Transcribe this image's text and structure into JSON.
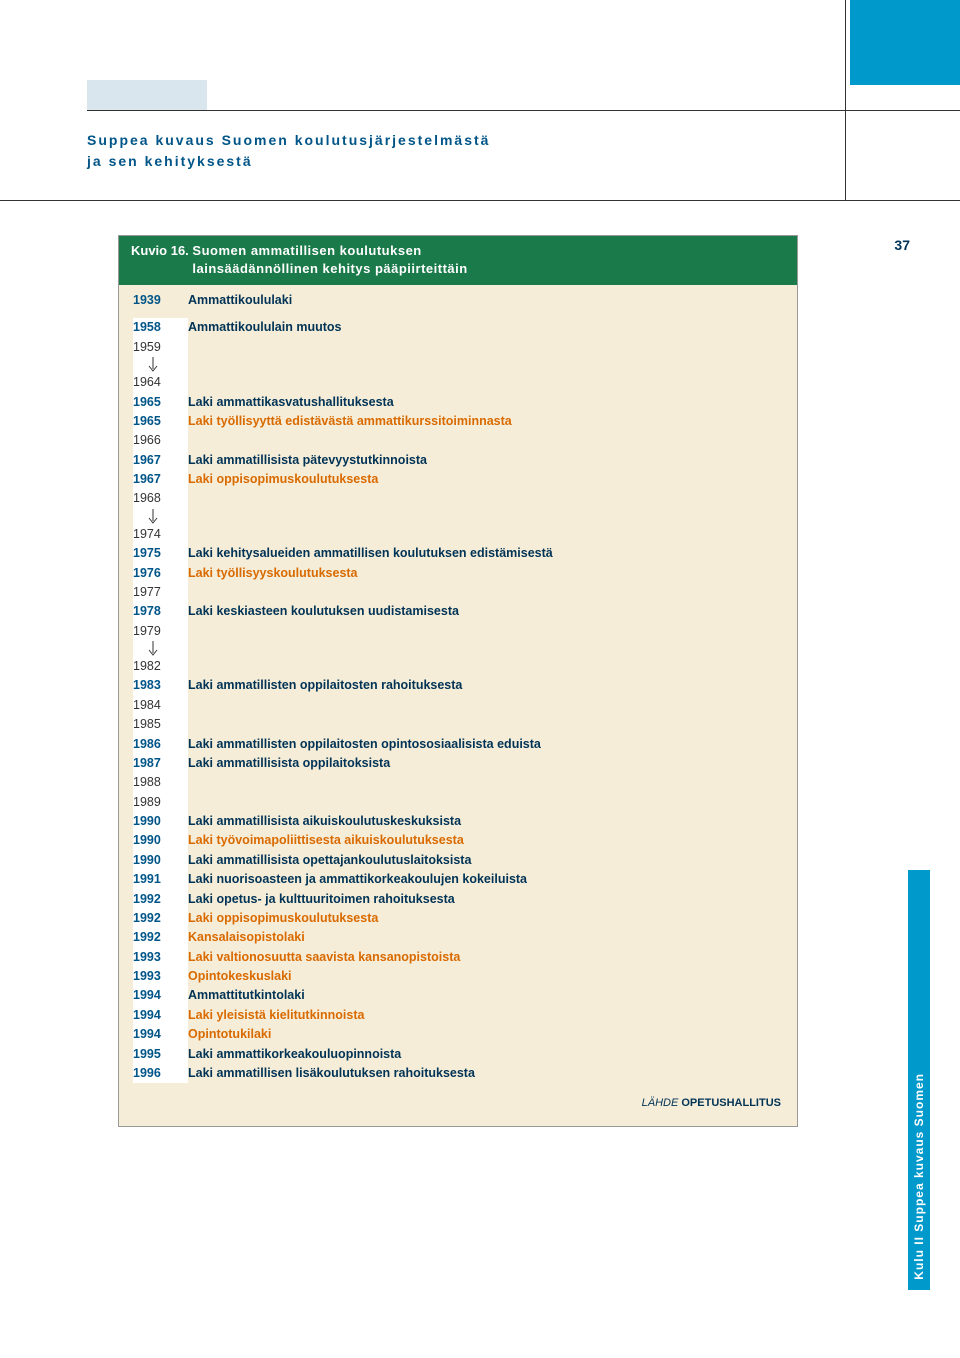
{
  "colors": {
    "accent_blue": "#0099cc",
    "header_green": "#1a7a4a",
    "body_beige": "#f6edd9",
    "text_navy": "#003355",
    "text_orange": "#d96a00",
    "year_blue": "#005588"
  },
  "heading": {
    "line1": "Suppea kuvaus Suomen koulutusjärjestelmästä",
    "line2": "ja sen kehityksestä"
  },
  "page_number": "37",
  "side_tab": "Kulu II   Suppea kuvaus Suomen",
  "figure": {
    "kuvio": "Kuvio 16.",
    "title_line1": "Suomen ammatillisen koulutuksen",
    "title_line2": "lainsäädännöllinen kehitys pääpiirteittäin",
    "first_year": "1939",
    "first_text": "Ammattikoululaki",
    "rows": [
      {
        "year": "1958",
        "text": "Ammattikoululain muutos",
        "bold": true,
        "color": "blue"
      },
      {
        "year": "1959",
        "text": "",
        "bold": false
      },
      {
        "arrow": true
      },
      {
        "year": "1964",
        "text": "",
        "bold": false
      },
      {
        "year": "1965",
        "text": "Laki ammattikasvatushallituksesta",
        "bold": true,
        "color": "blue"
      },
      {
        "year": "1965",
        "text": "Laki työllisyyttä edistävästä ammattikurssitoiminnasta",
        "bold": true,
        "color": "orange"
      },
      {
        "year": "1966",
        "text": "",
        "bold": false
      },
      {
        "year": "1967",
        "text": "Laki ammatillisista pätevyystutkinnoista",
        "bold": true,
        "color": "blue"
      },
      {
        "year": "1967",
        "text": "Laki oppisopimuskoulutuksesta",
        "bold": true,
        "color": "orange"
      },
      {
        "year": "1968",
        "text": "",
        "bold": false
      },
      {
        "arrow": true
      },
      {
        "year": "1974",
        "text": "",
        "bold": false
      },
      {
        "year": "1975",
        "text": "Laki kehitysalueiden ammatillisen koulutuksen edistämisestä",
        "bold": true,
        "color": "blue"
      },
      {
        "year": "1976",
        "text": "Laki työllisyyskoulutuksesta",
        "bold": true,
        "color": "orange"
      },
      {
        "year": "1977",
        "text": "",
        "bold": false
      },
      {
        "year": "1978",
        "text": "Laki keskiasteen koulutuksen uudistamisesta",
        "bold": true,
        "color": "blue"
      },
      {
        "year": "1979",
        "text": "",
        "bold": false
      },
      {
        "arrow": true
      },
      {
        "year": "1982",
        "text": "",
        "bold": false
      },
      {
        "year": "1983",
        "text": "Laki ammatillisten oppilaitosten rahoituksesta",
        "bold": true,
        "color": "blue"
      },
      {
        "year": "1984",
        "text": "",
        "bold": false
      },
      {
        "year": "1985",
        "text": "",
        "bold": false
      },
      {
        "year": "1986",
        "text": "Laki ammatillisten oppilaitosten opintososiaalisista eduista",
        "bold": true,
        "color": "blue"
      },
      {
        "year": "1987",
        "text": "Laki ammatillisista oppilaitoksista",
        "bold": true,
        "color": "blue"
      },
      {
        "year": "1988",
        "text": "",
        "bold": false
      },
      {
        "year": "1989",
        "text": "",
        "bold": false
      },
      {
        "year": "1990",
        "text": "Laki ammatillisista aikuiskoulutuskeskuksista",
        "bold": true,
        "color": "blue"
      },
      {
        "year": "1990",
        "text": "Laki työvoimapoliittisesta aikuiskoulutuksesta",
        "bold": true,
        "color": "orange"
      },
      {
        "year": "1990",
        "text": "Laki ammatillisista opettajankoulutuslaitoksista",
        "bold": true,
        "color": "blue"
      },
      {
        "year": "1991",
        "text": "Laki nuorisoasteen ja ammattikorkeakoulujen kokeiluista",
        "bold": true,
        "color": "blue"
      },
      {
        "year": "1992",
        "text": "Laki opetus- ja kulttuuritoimen rahoituksesta",
        "bold": true,
        "color": "blue"
      },
      {
        "year": "1992",
        "text": "Laki oppisopimuskoulutuksesta",
        "bold": true,
        "color": "orange"
      },
      {
        "year": "1992",
        "text": "Kansalaisopistolaki",
        "bold": true,
        "color": "orange"
      },
      {
        "year": "1993",
        "text": "Laki valtionosuutta saavista kansanopistoista",
        "bold": true,
        "color": "orange"
      },
      {
        "year": "1993",
        "text": "Opintokeskuslaki",
        "bold": true,
        "color": "orange"
      },
      {
        "year": "1994",
        "text": "Ammattitutkintolaki",
        "bold": true,
        "color": "blue"
      },
      {
        "year": "1994",
        "text": "Laki yleisistä kielitutkinnoista",
        "bold": true,
        "color": "orange"
      },
      {
        "year": "1994",
        "text": "Opintotukilaki",
        "bold": true,
        "color": "orange"
      },
      {
        "year": "1995",
        "text": "Laki ammattikorkeakouluopinnoista",
        "bold": true,
        "color": "blue"
      },
      {
        "year": "1996",
        "text": "Laki ammatillisen lisäkoulutuksen rahoituksesta",
        "bold": true,
        "color": "blue"
      }
    ],
    "source_label": "LÄHDE",
    "source_value": "OPETUSHALLITUS"
  }
}
